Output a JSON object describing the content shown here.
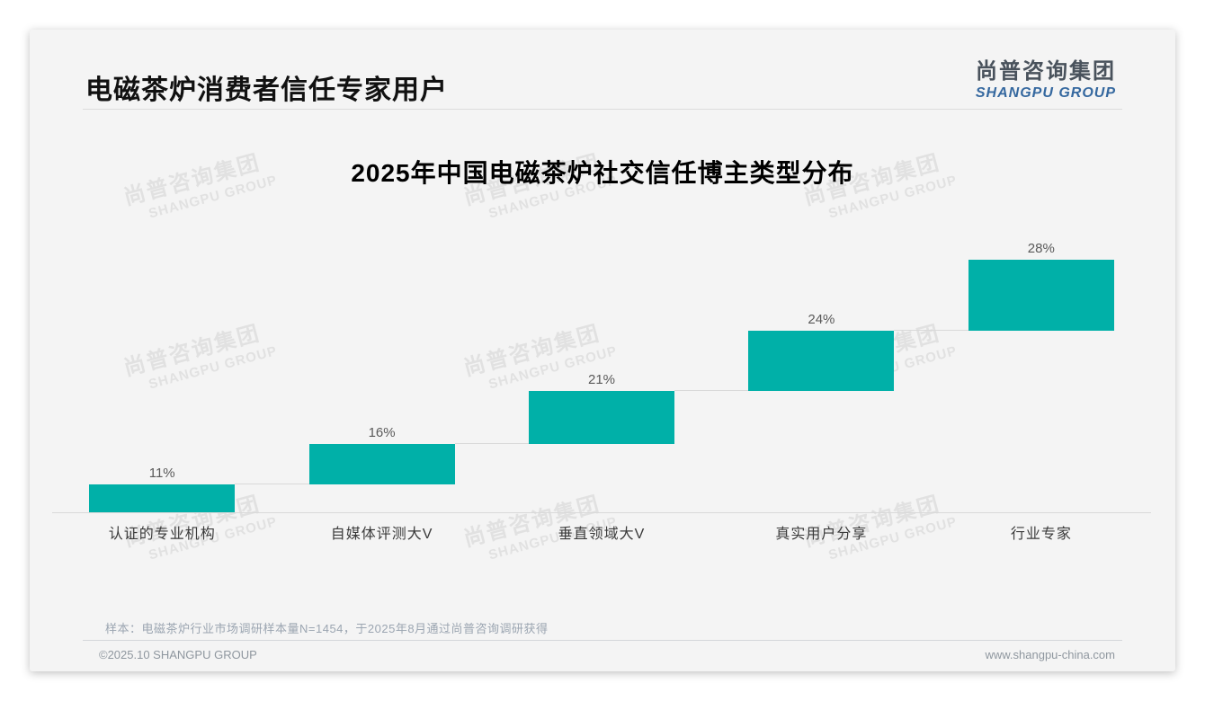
{
  "page": {
    "title": "电磁茶炉消费者信任专家用户",
    "logo": {
      "cn": "尚普咨询集团",
      "en": "SHANGPU GROUP"
    },
    "watermark": {
      "cn": "尚普咨询集团",
      "en": "SHANGPU GROUP"
    },
    "note": "样本：电磁茶炉行业市场调研样本量N=1454，于2025年8月通过尚普咨询调研获得",
    "footer": {
      "left": "©2025.10 SHANGPU GROUP",
      "right": "www.shangpu-china.com"
    }
  },
  "chart_data": {
    "type": "bar",
    "subtype": "waterfall",
    "title": "2025年中国电磁茶炉社交信任博主类型分布",
    "categories": [
      "认证的专业机构",
      "自媒体评测大V",
      "垂直领域大V",
      "真实用户分享",
      "行业专家"
    ],
    "values": [
      11,
      16,
      21,
      24,
      28
    ],
    "labels": [
      "11%",
      "16%",
      "21%",
      "24%",
      "28%"
    ],
    "cumulative_start": [
      0,
      11,
      27,
      48,
      72
    ],
    "ylim": [
      0,
      100
    ],
    "xlabel": "",
    "ylabel": "",
    "grid": "off",
    "legend": "none",
    "bar_color": "#00b0a8",
    "value_label_color": "#595959",
    "connector_color": "#d9d9d9"
  }
}
